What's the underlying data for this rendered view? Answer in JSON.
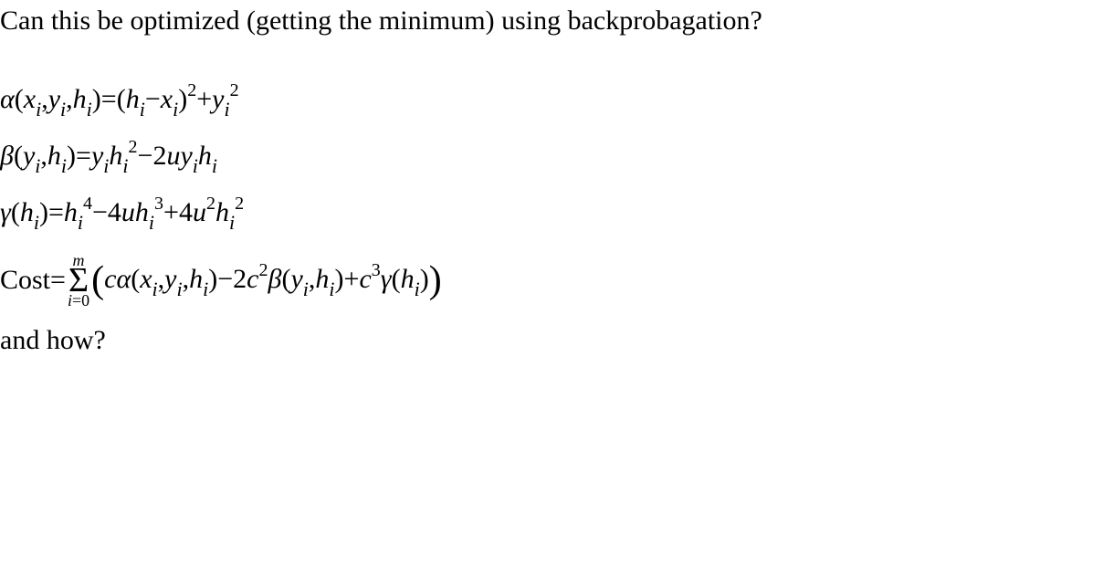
{
  "text_color": "#000000",
  "background_color": "#ffffff",
  "font_family": "Times New Roman, serif",
  "base_fontsize": 30,
  "subscript_fontsize": 22,
  "superscript_fontsize": 20,
  "sigma_fontsize": 38,
  "sum_limit_fontsize": 18,
  "lines": {
    "question": "Can this be optimized (getting the minimum) using backprobagation?",
    "alpha": {
      "func": "α",
      "args_display": "(xᵢ,yᵢ,hᵢ)",
      "eq": "=",
      "expr_display": "(hᵢ−xᵢ)²+yᵢ²",
      "vars": [
        "x",
        "y",
        "h"
      ],
      "subscripts": [
        "i",
        "i",
        "i"
      ],
      "terms": [
        {
          "type": "paren_sq",
          "inner": "hᵢ−xᵢ",
          "power": 2
        },
        {
          "type": "plus"
        },
        {
          "type": "var_pow",
          "var": "y",
          "sub": "i",
          "power": 2
        }
      ]
    },
    "beta": {
      "func": "β",
      "args_display": "(yᵢ,hᵢ)",
      "eq": "=",
      "expr_display": "yᵢhᵢ²−2uyᵢhᵢ",
      "terms": [
        {
          "coeffs": [
            "y_i"
          ],
          "var": "h",
          "sub": "i",
          "power": 2
        },
        {
          "type": "minus"
        },
        {
          "coeffs": [
            "2",
            "u",
            "y_i",
            "h_i"
          ]
        }
      ]
    },
    "gamma": {
      "func": "γ",
      "args_display": "(hᵢ)",
      "eq": "=",
      "expr_display": "hᵢ⁴−4uhᵢ³+4u²hᵢ²",
      "terms": [
        {
          "var": "h",
          "sub": "i",
          "power": 4
        },
        {
          "type": "minus"
        },
        {
          "coeff": "4",
          "var1": "u",
          "var2": "h",
          "sub2": "i",
          "power2": 3
        },
        {
          "type": "plus"
        },
        {
          "coeff": "4",
          "var1": "u",
          "power1": 2,
          "var2": "h",
          "sub2": "i",
          "power2": 2
        }
      ]
    },
    "cost": {
      "label": "Cost",
      "eq": "=",
      "sum": {
        "lower_var": "i",
        "lower_eq": "=",
        "lower_val": "0",
        "upper": "m"
      },
      "inner_display": "cα(xᵢ,yᵢ,hᵢ)−2c²β(yᵢ,hᵢ)+c³γ(hᵢ)",
      "terms": [
        {
          "coeff": "c",
          "func": "α",
          "args": [
            "x_i",
            "y_i",
            "h_i"
          ]
        },
        {
          "op": "−"
        },
        {
          "coeff": "2",
          "var": "c",
          "power": 2,
          "func": "β",
          "args": [
            "y_i",
            "h_i"
          ]
        },
        {
          "op": "+"
        },
        {
          "var": "c",
          "power": 3,
          "func": "γ",
          "args": [
            "h_i"
          ]
        }
      ]
    },
    "followup": "and how?"
  }
}
